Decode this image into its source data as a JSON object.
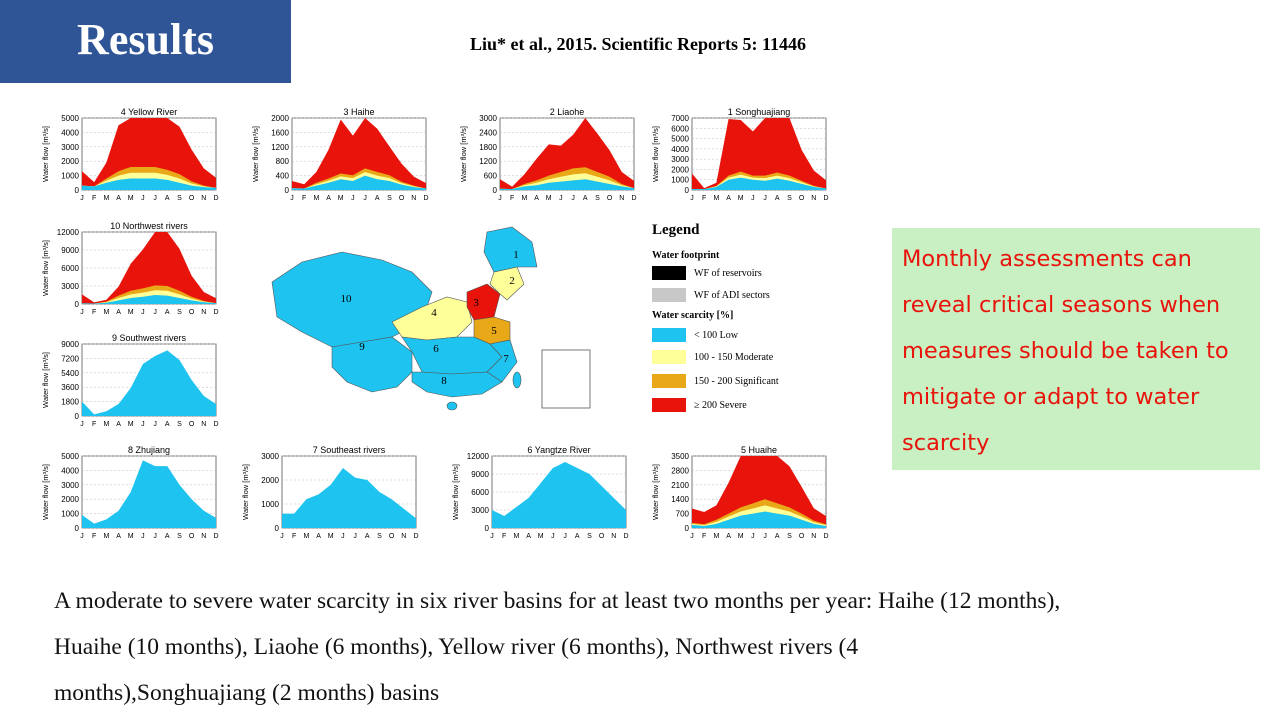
{
  "header": {
    "title": "Results",
    "citation": "Liu* et al., 2015. Scientific Reports 5: 11446"
  },
  "colors": {
    "title_bg": "#2f5597",
    "low": "#1ec3f0",
    "moderate": "#ffff99",
    "significant": "#e8a817",
    "severe": "#e8140c",
    "reservoir": "#000000",
    "adi": "#c8c8c8",
    "callout_bg": "#c8f0c3",
    "callout_text": "#e8140c"
  },
  "axis": {
    "ylabel": "Water flow [m³/s]",
    "months": [
      "J",
      "F",
      "M",
      "A",
      "M",
      "J",
      "J",
      "A",
      "S",
      "O",
      "N",
      "D"
    ]
  },
  "chart_data": [
    {
      "type": "area",
      "title": "4 Yellow River",
      "ylim": [
        0,
        5000
      ],
      "yticks": [
        0,
        1000,
        2000,
        3000,
        4000,
        5000
      ],
      "series": [
        {
          "name": "< 100 Low",
          "values": [
            300,
            250,
            500,
            700,
            800,
            800,
            800,
            700,
            500,
            300,
            200,
            150
          ]
        },
        {
          "name": "100 - 150 Moderate",
          "values": [
            0,
            0,
            150,
            300,
            400,
            400,
            400,
            350,
            300,
            150,
            50,
            0
          ]
        },
        {
          "name": "150 - 200 Significant",
          "values": [
            0,
            0,
            150,
            300,
            400,
            400,
            400,
            350,
            300,
            150,
            50,
            0
          ]
        },
        {
          "name": "≥ 200 Severe",
          "values": [
            1000,
            300,
            1100,
            3200,
            3700,
            4100,
            4000,
            4400,
            3300,
            2200,
            1200,
            700
          ]
        }
      ]
    },
    {
      "type": "area",
      "title": "3 Haihe",
      "ylim": [
        0,
        2000
      ],
      "yticks": [
        0,
        400,
        800,
        1200,
        1600,
        2000
      ],
      "series": [
        {
          "name": "< 100 Low",
          "values": [
            50,
            40,
            120,
            200,
            300,
            250,
            400,
            300,
            250,
            150,
            80,
            40
          ]
        },
        {
          "name": "100 - 150 Moderate",
          "values": [
            0,
            0,
            40,
            60,
            80,
            80,
            100,
            100,
            80,
            40,
            20,
            0
          ]
        },
        {
          "name": "150 - 200 Significant",
          "values": [
            0,
            0,
            40,
            60,
            80,
            80,
            100,
            100,
            80,
            40,
            20,
            0
          ]
        },
        {
          "name": "≥ 200 Severe",
          "values": [
            200,
            120,
            300,
            800,
            1500,
            1100,
            1800,
            1200,
            800,
            500,
            250,
            150
          ]
        }
      ]
    },
    {
      "type": "area",
      "title": "2 Liaohe",
      "ylim": [
        0,
        3000
      ],
      "yticks": [
        0,
        600,
        1200,
        1800,
        2400,
        3000
      ],
      "series": [
        {
          "name": "< 100 Low",
          "values": [
            50,
            40,
            150,
            200,
            300,
            350,
            400,
            450,
            350,
            250,
            150,
            80
          ]
        },
        {
          "name": "100 - 150 Moderate",
          "values": [
            0,
            0,
            50,
            100,
            150,
            200,
            250,
            250,
            200,
            150,
            50,
            0
          ]
        },
        {
          "name": "150 - 200 Significant",
          "values": [
            0,
            0,
            50,
            100,
            150,
            200,
            250,
            250,
            200,
            150,
            50,
            0
          ]
        },
        {
          "name": "≥ 200 Severe",
          "values": [
            400,
            100,
            400,
            900,
            1300,
            1100,
            1400,
            2500,
            1600,
            1100,
            500,
            300
          ]
        }
      ]
    },
    {
      "type": "area",
      "title": "1 Songhuajiang",
      "ylim": [
        0,
        7000
      ],
      "yticks": [
        0,
        1000,
        2000,
        3000,
        4000,
        5000,
        6000,
        7000
      ],
      "series": [
        {
          "name": "< 100 Low",
          "values": [
            100,
            80,
            300,
            1000,
            1200,
            1000,
            900,
            1100,
            900,
            600,
            300,
            150
          ]
        },
        {
          "name": "100 - 150 Moderate",
          "values": [
            0,
            0,
            50,
            200,
            300,
            200,
            250,
            300,
            250,
            150,
            50,
            0
          ]
        },
        {
          "name": "150 - 200 Significant",
          "values": [
            0,
            0,
            50,
            200,
            300,
            200,
            250,
            300,
            250,
            150,
            50,
            0
          ]
        },
        {
          "name": "≥ 200 Severe",
          "values": [
            1500,
            100,
            300,
            5500,
            5000,
            4300,
            6000,
            6700,
            5800,
            3000,
            1500,
            800
          ]
        }
      ]
    },
    {
      "type": "area",
      "title": "10 Northwest rivers",
      "ylim": [
        0,
        12000
      ],
      "yticks": [
        0,
        3000,
        6000,
        9000,
        12000
      ],
      "series": [
        {
          "name": "< 100 Low",
          "values": [
            100,
            80,
            200,
            600,
            1000,
            1200,
            1500,
            1400,
            1000,
            600,
            300,
            150
          ]
        },
        {
          "name": "100 - 150 Moderate",
          "values": [
            0,
            0,
            100,
            400,
            600,
            700,
            800,
            800,
            600,
            300,
            100,
            0
          ]
        },
        {
          "name": "150 - 200 Significant",
          "values": [
            0,
            0,
            100,
            400,
            600,
            700,
            800,
            800,
            600,
            300,
            100,
            0
          ]
        },
        {
          "name": "≥ 200 Severe",
          "values": [
            1500,
            200,
            300,
            1500,
            4500,
            6500,
            9500,
            9500,
            7000,
            3500,
            1500,
            800
          ]
        }
      ]
    },
    {
      "type": "area",
      "title": "9 Southwest rivers",
      "ylim": [
        0,
        9000
      ],
      "yticks": [
        0,
        1800,
        3600,
        5400,
        7200,
        9000
      ],
      "series": [
        {
          "name": "< 100 Low",
          "values": [
            1800,
            200,
            600,
            1500,
            3500,
            6500,
            7500,
            8200,
            7000,
            4500,
            2500,
            1500
          ]
        }
      ]
    },
    {
      "type": "area",
      "title": "8 Zhujiang",
      "ylim": [
        0,
        5000
      ],
      "yticks": [
        0,
        1000,
        2000,
        3000,
        4000,
        5000
      ],
      "series": [
        {
          "name": "< 100 Low",
          "values": [
            900,
            300,
            600,
            1200,
            2500,
            4700,
            4300,
            4300,
            3000,
            2000,
            1200,
            700
          ]
        }
      ]
    },
    {
      "type": "area",
      "title": "7 Southeast rivers",
      "ylim": [
        0,
        3000
      ],
      "yticks": [
        0,
        1000,
        2000,
        3000
      ],
      "series": [
        {
          "name": "< 100 Low",
          "values": [
            600,
            600,
            1200,
            1400,
            1800,
            2500,
            2100,
            2000,
            1500,
            1200,
            800,
            400
          ]
        }
      ]
    },
    {
      "type": "area",
      "title": "6 Yangtze River",
      "ylim": [
        0,
        12000
      ],
      "yticks": [
        0,
        3000,
        6000,
        9000,
        12000
      ],
      "series": [
        {
          "name": "< 100 Low",
          "values": [
            3000,
            2000,
            3500,
            5000,
            7500,
            10000,
            11000,
            10000,
            9000,
            7000,
            5000,
            3000
          ]
        }
      ]
    },
    {
      "type": "area",
      "title": "5 Huaihe",
      "ylim": [
        0,
        3500
      ],
      "yticks": [
        0,
        700,
        1400,
        2100,
        2800,
        3500
      ],
      "series": [
        {
          "name": "< 100 Low",
          "values": [
            150,
            100,
            200,
            400,
            600,
            700,
            800,
            700,
            600,
            400,
            200,
            100
          ]
        },
        {
          "name": "100 - 150 Moderate",
          "values": [
            50,
            40,
            100,
            150,
            200,
            250,
            300,
            250,
            200,
            150,
            80,
            40
          ]
        },
        {
          "name": "150 - 200 Significant",
          "values": [
            50,
            40,
            100,
            150,
            200,
            250,
            300,
            250,
            200,
            150,
            80,
            40
          ]
        },
        {
          "name": "≥ 200 Severe",
          "values": [
            700,
            600,
            700,
            1500,
            2600,
            2700,
            2700,
            2600,
            2000,
            1300,
            600,
            400
          ]
        }
      ]
    }
  ],
  "legend": {
    "title": "Legend",
    "footprint_heading": "Water footprint",
    "footprint_items": [
      {
        "label": "WF of reservoirs",
        "color": "#000000"
      },
      {
        "label": "WF of ADI sectors",
        "color": "#c8c8c8"
      }
    ],
    "scarcity_heading": "Water scarcity [%]",
    "scarcity_items": [
      {
        "label": "< 100 Low",
        "color": "#1ec3f0"
      },
      {
        "label": "100 - 150 Moderate",
        "color": "#ffff99"
      },
      {
        "label": "150 - 200 Significant",
        "color": "#e8a817"
      },
      {
        "label": "≥ 200 Severe",
        "color": "#e8140c"
      }
    ]
  },
  "map": {
    "region_labels": [
      "1",
      "2",
      "3",
      "4",
      "5",
      "6",
      "7",
      "8",
      "9",
      "10"
    ]
  },
  "callout": {
    "text": "Monthly assessments can reveal critical seasons when measures should be taken to mitigate or adapt to water scarcity"
  },
  "summary": {
    "text": "A moderate to severe water scarcity in six river basins for at least two months per year: Haihe (12 months), Huaihe (10 months), Liaohe (6 months), Yellow river (6 months), Northwest rivers (4 months),Songhuajiang (2 months) basins"
  }
}
